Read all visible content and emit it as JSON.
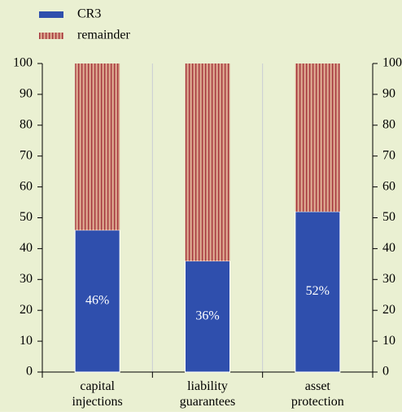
{
  "chart_data": {
    "type": "stacked_bar",
    "categories": [
      "capital injections",
      "liability guarantees",
      "asset protection"
    ],
    "series": [
      {
        "name": "CR3",
        "color": "#2f4fad",
        "values": [
          46,
          36,
          52
        ],
        "value_labels": [
          "46%",
          "36%",
          "52%"
        ]
      },
      {
        "name": "remainder",
        "color": "#d9a18a",
        "hatch": "#a3313a",
        "values": [
          54,
          64,
          48
        ]
      }
    ],
    "ylim": [
      0,
      100
    ],
    "yticks": [
      0,
      10,
      20,
      30,
      40,
      50,
      60,
      70,
      80,
      90,
      100
    ],
    "right_axis": true,
    "background": "#eaf0d2"
  }
}
